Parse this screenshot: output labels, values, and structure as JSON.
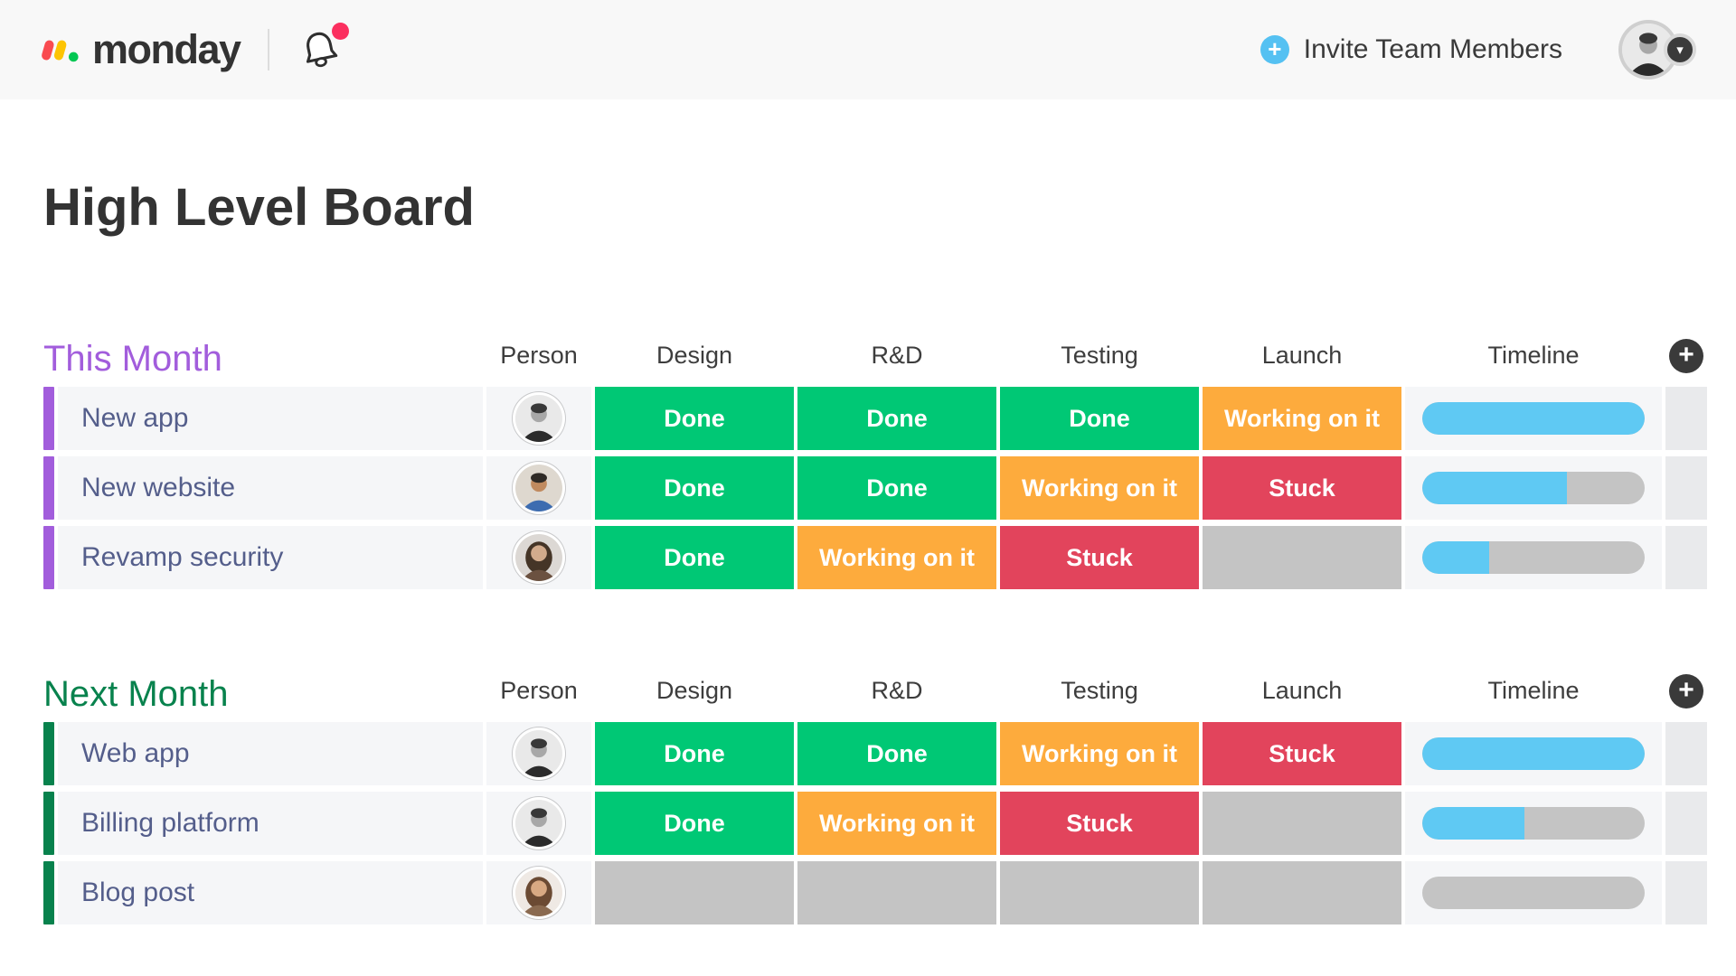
{
  "header": {
    "brand": "monday",
    "invite_label": "Invite Team Members",
    "avatar": "man-suit"
  },
  "icons": {
    "plus": "+",
    "chevron_down": "▾"
  },
  "board": {
    "title": "High Level Board"
  },
  "columns": [
    "Person",
    "Design",
    "R&D",
    "Testing",
    "Launch",
    "Timeline"
  ],
  "groups": [
    {
      "title": "This Month",
      "color": "#a25ddc",
      "rows": [
        {
          "name": "New app",
          "avatar": "man-suit",
          "statuses": [
            {
              "label": "Done",
              "type": "done"
            },
            {
              "label": "Done",
              "type": "done"
            },
            {
              "label": "Done",
              "type": "done"
            },
            {
              "label": "Working on it",
              "type": "working"
            }
          ],
          "timeline_percent": 100
        },
        {
          "name": "New website",
          "avatar": "man-beard",
          "statuses": [
            {
              "label": "Done",
              "type": "done"
            },
            {
              "label": "Done",
              "type": "done"
            },
            {
              "label": "Working on it",
              "type": "working"
            },
            {
              "label": "Stuck",
              "type": "stuck"
            }
          ],
          "timeline_percent": 65
        },
        {
          "name": "Revamp security",
          "avatar": "woman-dark",
          "statuses": [
            {
              "label": "Done",
              "type": "done"
            },
            {
              "label": "Working on it",
              "type": "working"
            },
            {
              "label": "Stuck",
              "type": "stuck"
            },
            {
              "label": "",
              "type": "empty"
            }
          ],
          "timeline_percent": 30
        }
      ]
    },
    {
      "title": "Next Month",
      "color": "#08824d",
      "rows": [
        {
          "name": "Web app",
          "avatar": "man-suit",
          "statuses": [
            {
              "label": "Done",
              "type": "done"
            },
            {
              "label": "Done",
              "type": "done"
            },
            {
              "label": "Working on it",
              "type": "working"
            },
            {
              "label": "Stuck",
              "type": "stuck"
            }
          ],
          "timeline_percent": 100
        },
        {
          "name": "Billing platform",
          "avatar": "man-suit",
          "statuses": [
            {
              "label": "Done",
              "type": "done"
            },
            {
              "label": "Working on it",
              "type": "working"
            },
            {
              "label": "Stuck",
              "type": "stuck"
            },
            {
              "label": "",
              "type": "empty"
            }
          ],
          "timeline_percent": 46
        },
        {
          "name": "Blog post",
          "avatar": "woman-brown",
          "statuses": [
            {
              "label": "",
              "type": "empty"
            },
            {
              "label": "",
              "type": "empty"
            },
            {
              "label": "",
              "type": "empty"
            },
            {
              "label": "",
              "type": "empty"
            }
          ],
          "timeline_percent": 0
        }
      ]
    }
  ],
  "colors": {
    "status-done": "#00c875",
    "status-working": "#fdab3d",
    "status-stuck": "#e2445c",
    "status-empty": "#c4c4c4",
    "timeline-fill": "#5fc9f3",
    "timeline-track": "#c4c4c4",
    "invite-blue": "#55c1f2",
    "notification-pink": "#fb2f5f",
    "logo-red": "#f94b50",
    "logo-yellow": "#fdc402",
    "logo-green": "#02c753"
  }
}
